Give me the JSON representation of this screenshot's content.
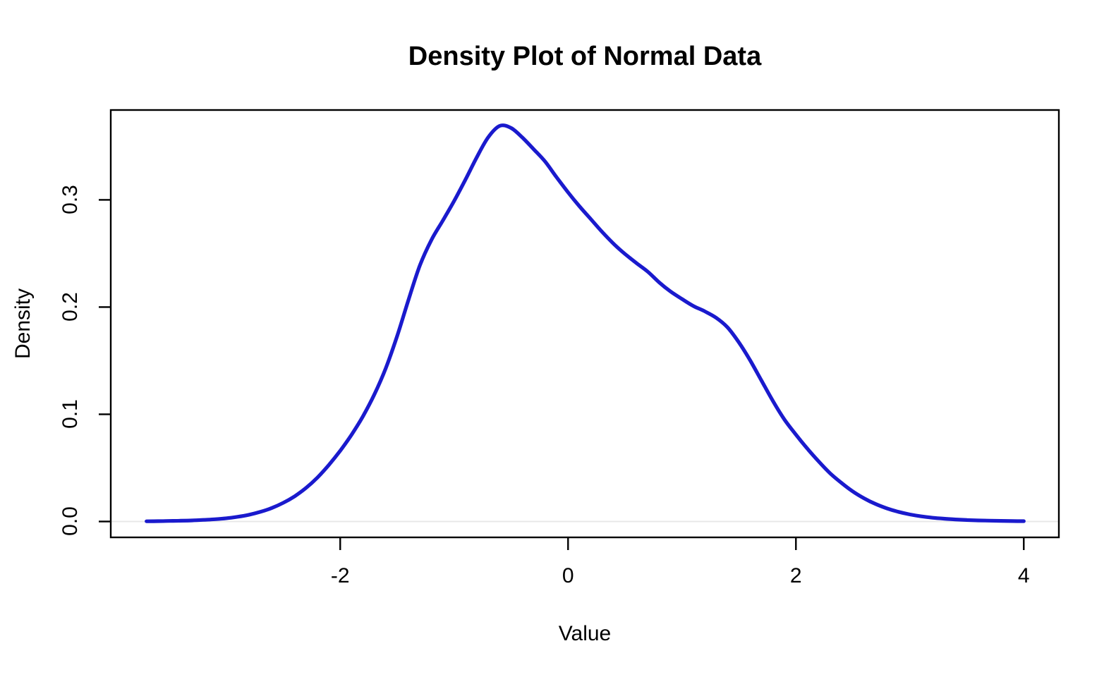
{
  "title": "Density Plot of Normal Data",
  "axes": {
    "xlabel": "Value",
    "ylabel": "Density"
  },
  "chart_data": {
    "type": "line",
    "title": "Density Plot of Normal Data",
    "xlabel": "Value",
    "ylabel": "Density",
    "grid": false,
    "legend": false,
    "x_ticks": {
      "values": [
        -2,
        0,
        2,
        4
      ],
      "labels": [
        "-2",
        "0",
        "2",
        "4"
      ]
    },
    "y_ticks": {
      "values": [
        0.0,
        0.1,
        0.2,
        0.3
      ],
      "labels": [
        "0.0",
        "0.1",
        "0.2",
        "0.3"
      ]
    },
    "x_range": [
      -4.014,
      4.308
    ],
    "y_range": [
      -0.0148,
      0.3838
    ],
    "box_color": "#000000",
    "zero_line": {
      "y": 0.0,
      "color": "#e8e8e8"
    },
    "series": [
      {
        "name": "density",
        "color": "#1a1acd",
        "line_width": 5.2,
        "x": [
          -3.7,
          -3.6,
          -3.5,
          -3.4,
          -3.3,
          -3.2,
          -3.1,
          -3.0,
          -2.9,
          -2.8,
          -2.7,
          -2.6,
          -2.5,
          -2.4,
          -2.3,
          -2.2,
          -2.1,
          -2.0,
          -1.9,
          -1.8,
          -1.7,
          -1.6,
          -1.5,
          -1.4,
          -1.3,
          -1.2,
          -1.1,
          -1.0,
          -0.9,
          -0.8,
          -0.7,
          -0.6,
          -0.5,
          -0.4,
          -0.3,
          -0.2,
          -0.1,
          0.0,
          0.1,
          0.2,
          0.3,
          0.4,
          0.5,
          0.6,
          0.7,
          0.8,
          0.9,
          1.0,
          1.1,
          1.2,
          1.3,
          1.4,
          1.5,
          1.6,
          1.7,
          1.8,
          1.9,
          2.0,
          2.1,
          2.2,
          2.3,
          2.4,
          2.5,
          2.6,
          2.7,
          2.8,
          2.9,
          3.0,
          3.1,
          3.2,
          3.3,
          3.4,
          3.5,
          3.6,
          3.7,
          3.8,
          3.9,
          4.0
        ],
        "y": [
          0.0002,
          0.0003,
          0.0005,
          0.0007,
          0.001,
          0.0015,
          0.0021,
          0.003,
          0.0044,
          0.0063,
          0.009,
          0.0126,
          0.0174,
          0.0235,
          0.0313,
          0.041,
          0.0527,
          0.066,
          0.081,
          0.0982,
          0.1185,
          0.143,
          0.173,
          0.207,
          0.239,
          0.2625,
          0.2805,
          0.299,
          0.319,
          0.34,
          0.3585,
          0.369,
          0.367,
          0.358,
          0.347,
          0.3355,
          0.321,
          0.307,
          0.294,
          0.282,
          0.27,
          0.259,
          0.2495,
          0.241,
          0.233,
          0.223,
          0.2145,
          0.2075,
          0.201,
          0.196,
          0.19,
          0.181,
          0.167,
          0.15,
          0.131,
          0.112,
          0.095,
          0.081,
          0.068,
          0.056,
          0.045,
          0.036,
          0.028,
          0.0215,
          0.0163,
          0.0122,
          0.009,
          0.0066,
          0.0048,
          0.0035,
          0.0026,
          0.0019,
          0.0014,
          0.001,
          0.0008,
          0.0006,
          0.0004,
          0.0003
        ],
        "peak": {
          "x": -0.63,
          "y": 0.369
        }
      }
    ]
  }
}
